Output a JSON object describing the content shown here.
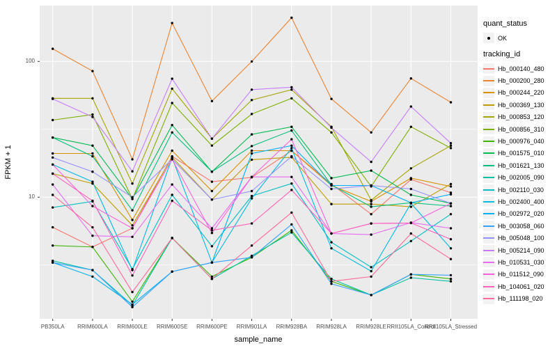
{
  "figure": {
    "y_axis_title": "FPKM + 1",
    "x_axis_title": "sample_name"
  },
  "legend": {
    "quant_status": {
      "title": "quant_status",
      "items": [
        {
          "label": "OK",
          "marker": "point"
        }
      ]
    },
    "tracking": {
      "title": "tracking_id"
    }
  },
  "chart_data": {
    "type": "line",
    "x_axis": "sample_name",
    "y_axis": "FPKM + 1",
    "y_scale": "log10",
    "y_ticks": [
      10,
      100
    ],
    "y_minor_ticks": [
      3.162,
      31.62
    ],
    "ylim": [
      1.3,
      258
    ],
    "grid": true,
    "legend_position": "right",
    "point_marker": "black-dot",
    "colors": {
      "panel": "#EBEBEB",
      "grid": "#FFFFFF",
      "point": "#000000",
      "axis_text": "#4D4D4D"
    },
    "categories": [
      "PB350LA",
      "RRIM600LA",
      "RRIM600LE",
      "RRIM600SE",
      "RRIM600PE",
      "RRIM901LA",
      "RRIM928BA",
      "RRIM928LA",
      "RRIM928LE",
      "RRII105LA_Control",
      "RRII105LA_Stressed"
    ],
    "series": [
      {
        "name": "Hb_000140_480",
        "color": "#F8766D",
        "values": [
          6.0,
          4.3,
          5.9,
          20.0,
          13.0,
          14.0,
          22.0,
          12.5,
          7.5,
          13.5,
          10.8
        ]
      },
      {
        "name": "Hb_000200_280",
        "color": "#EA8331",
        "values": [
          124,
          85,
          19.0,
          192,
          51,
          100,
          210,
          53,
          30,
          75,
          50
        ]
      },
      {
        "name": "Hb_000244_220",
        "color": "#D89000",
        "values": [
          21.0,
          21.0,
          6.8,
          22.0,
          11.1,
          22.0,
          22.0,
          12.2,
          9.3,
          13.8,
          12.0
        ]
      },
      {
        "name": "Hb_000369_130",
        "color": "#C09B00",
        "values": [
          14.9,
          12.6,
          6.2,
          19.7,
          9.6,
          18.9,
          19.7,
          8.9,
          8.9,
          8.5,
          12.5
        ]
      },
      {
        "name": "Hb_000853_120",
        "color": "#A3A500",
        "values": [
          53.5,
          53.5,
          12.6,
          63,
          27,
          52,
          62,
          33,
          9.5,
          16.3,
          24
        ]
      },
      {
        "name": "Hb_000856_310",
        "color": "#7CAE00",
        "values": [
          37,
          40.6,
          9.7,
          49.4,
          24,
          41,
          53.5,
          30,
          12.0,
          33,
          23
        ]
      },
      {
        "name": "Hb_000976_040",
        "color": "#39B600",
        "values": [
          4.4,
          4.3,
          1.7,
          5.0,
          2.6,
          3.6,
          5.7,
          2.4,
          1.9,
          2.7,
          2.5
        ]
      },
      {
        "name": "Hb_001575_010",
        "color": "#00BB4E",
        "values": [
          27.5,
          24,
          9.7,
          34,
          15.4,
          29,
          33,
          13.8,
          15.7,
          10.4,
          9.0
        ]
      },
      {
        "name": "Hb_001621_130",
        "color": "#00BF7D",
        "values": [
          27.5,
          20,
          8.0,
          30,
          15.4,
          23.8,
          31,
          12.3,
          8.5,
          9.1,
          8.6
        ]
      },
      {
        "name": "Hb_002005_090",
        "color": "#00C1A3",
        "values": [
          3.4,
          2.9,
          1.6,
          5.0,
          2.5,
          3.7,
          5.5,
          2.5,
          1.9,
          2.55,
          2.4
        ]
      },
      {
        "name": "Hb_002110_030",
        "color": "#00BFC4",
        "values": [
          8.4,
          9.3,
          2.95,
          10.4,
          4.35,
          10.2,
          12.6,
          4.65,
          3.05,
          4.75,
          7.5
        ]
      },
      {
        "name": "Hb_002400_400",
        "color": "#00BAE0",
        "values": [
          17.4,
          13.0,
          2.9,
          19.5,
          3.3,
          9.8,
          23,
          4.2,
          2.85,
          9.0,
          4.2
        ]
      },
      {
        "name": "Hb_002972_020",
        "color": "#00B0F6",
        "values": [
          3.3,
          2.6,
          1.62,
          2.83,
          3.3,
          21,
          24,
          12.2,
          12.2,
          9.1,
          10.5
        ]
      },
      {
        "name": "Hb_003058_060",
        "color": "#35A2FF",
        "values": [
          3.3,
          2.9,
          1.55,
          2.83,
          3.3,
          3.6,
          6.3,
          2.3,
          1.9,
          2.7,
          2.66
        ]
      },
      {
        "name": "Hb_005048_100",
        "color": "#9590FF",
        "values": [
          19.6,
          15.4,
          10.0,
          19.0,
          9.6,
          11.1,
          20.0,
          11.5,
          12.2,
          11.5,
          9.0
        ]
      },
      {
        "name": "Hb_005214_090",
        "color": "#C77CFF",
        "values": [
          53,
          39,
          15.5,
          74.6,
          27,
          62,
          64.6,
          32.5,
          18.2,
          46.5,
          25
        ]
      },
      {
        "name": "Hb_010531_030",
        "color": "#E76BF3",
        "values": [
          12.4,
          5.2,
          5.1,
          12.4,
          5.9,
          14.1,
          14.1,
          5.4,
          5.3,
          6.5,
          5.9
        ]
      },
      {
        "name": "Hb_011512_090",
        "color": "#FA62DB",
        "values": [
          17.4,
          8.6,
          5.9,
          19.0,
          5.45,
          14.1,
          26.7,
          5.4,
          6.4,
          6.45,
          9.0
        ]
      },
      {
        "name": "Hb_104061_020",
        "color": "#FF62BC",
        "values": [
          14.9,
          9.4,
          2.65,
          9.4,
          5.7,
          6.4,
          11.3,
          5.4,
          6.4,
          6.45,
          4.9
        ]
      },
      {
        "name": "Hb_111198_020",
        "color": "#FF6A98",
        "values": [
          10.4,
          6.0,
          2.0,
          5.0,
          2.5,
          4.4,
          7.7,
          2.4,
          2.6,
          5.4,
          3.5
        ]
      }
    ]
  }
}
